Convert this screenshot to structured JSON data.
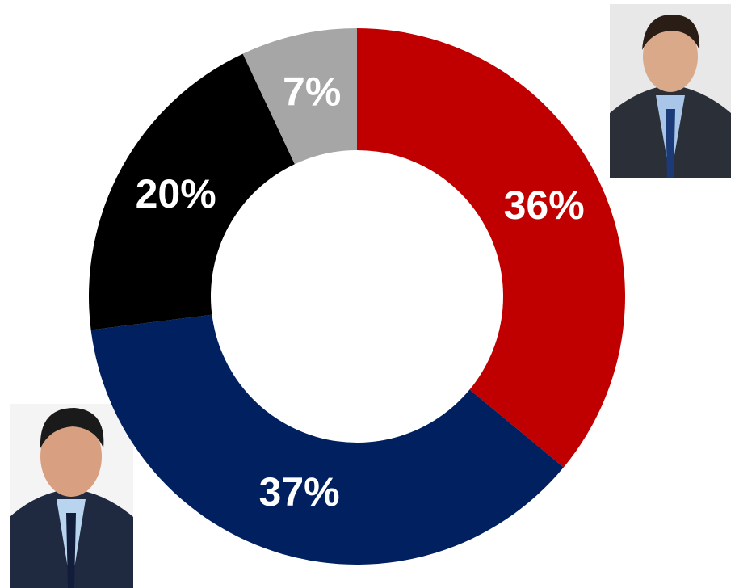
{
  "chart_data": {
    "type": "donut",
    "values": [
      36,
      37,
      20,
      7
    ],
    "value_labels": [
      "36%",
      "37%",
      "20%",
      "7%"
    ],
    "colors": [
      "#c00000",
      "#002060",
      "#000000",
      "#a6a6a6"
    ]
  }
}
